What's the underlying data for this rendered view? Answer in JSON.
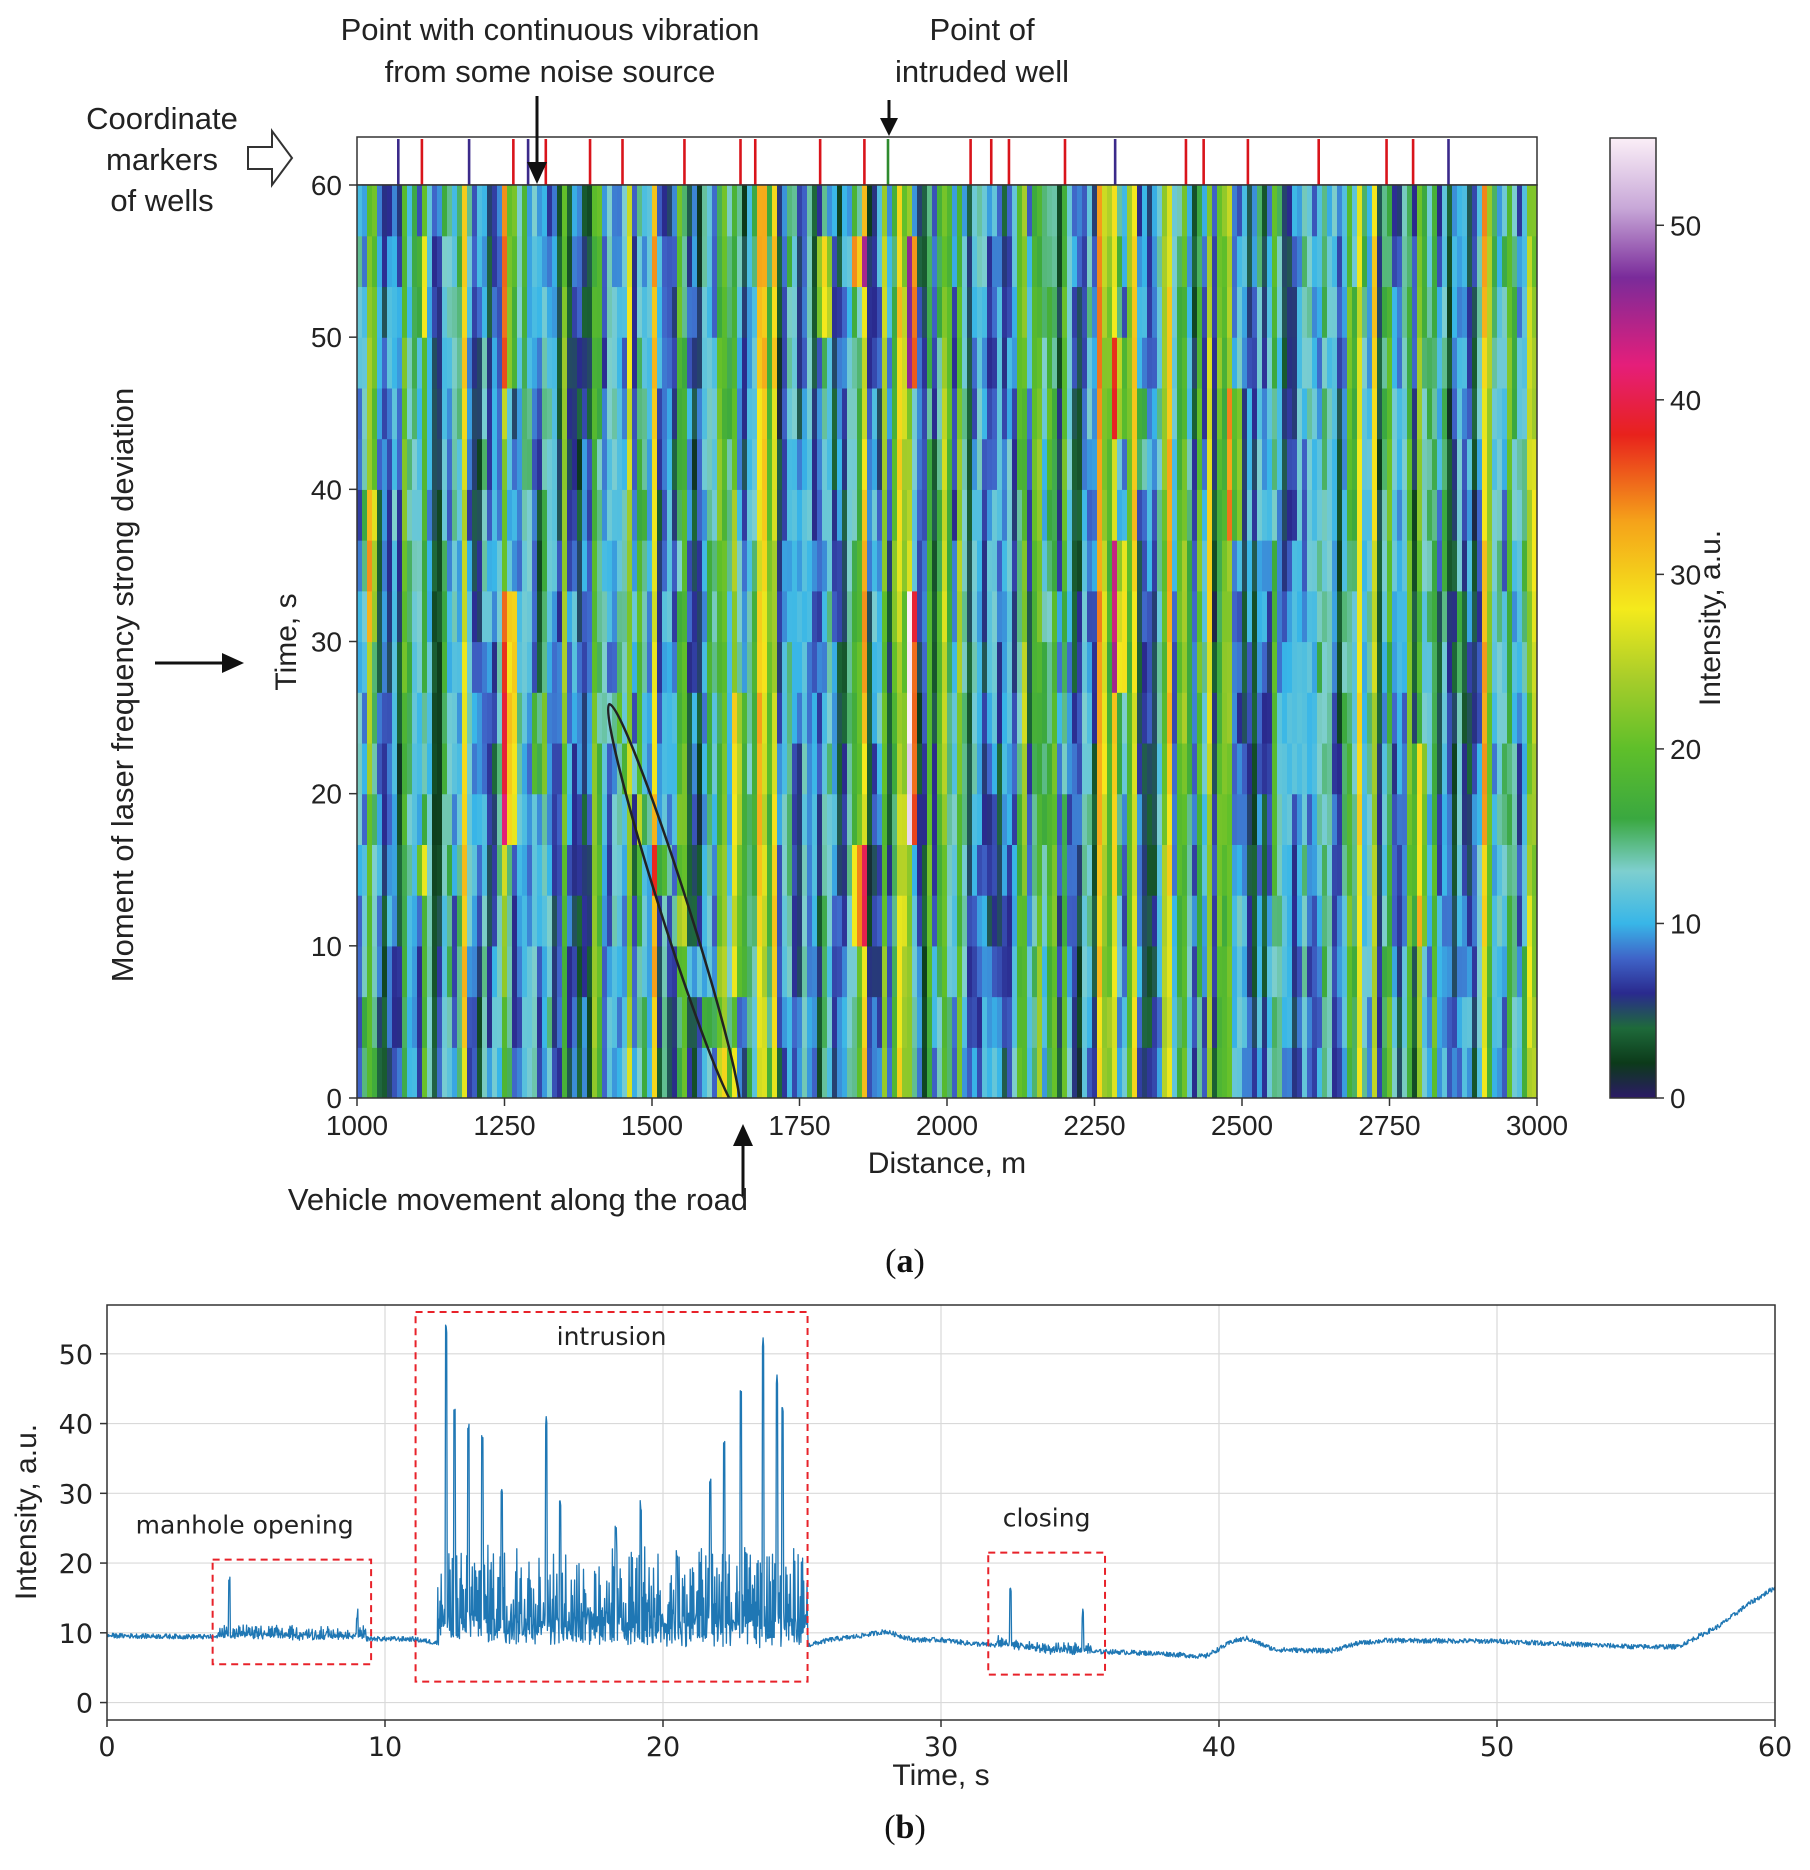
{
  "chart_data": [
    {
      "type": "heatmap",
      "panel": "a",
      "title": "",
      "xlabel": "Distance, m",
      "ylabel": "Time, s",
      "xlim": [
        1000,
        3000
      ],
      "ylim": [
        0,
        60
      ],
      "xticks": [
        "1000",
        "1250",
        "1500",
        "1750",
        "2000",
        "2250",
        "2500",
        "2750",
        "3000"
      ],
      "yticks": [
        "0",
        "10",
        "20",
        "30",
        "40",
        "50",
        "60"
      ],
      "colorbar": {
        "label": "Intensity, a.u.",
        "range": [
          0,
          55
        ],
        "ticks": [
          "0",
          "10",
          "20",
          "30",
          "40",
          "50"
        ],
        "stops": [
          {
            "v": 0,
            "c": "#2b1a66"
          },
          {
            "v": 2,
            "c": "#0c3a1a"
          },
          {
            "v": 4,
            "c": "#1e6a3a"
          },
          {
            "v": 6,
            "c": "#2a2a8e"
          },
          {
            "v": 8,
            "c": "#3f64c8"
          },
          {
            "v": 10,
            "c": "#38b6e8"
          },
          {
            "v": 13,
            "c": "#7ecfcf"
          },
          {
            "v": 16,
            "c": "#3aa840"
          },
          {
            "v": 20,
            "c": "#5fbf2a"
          },
          {
            "v": 24,
            "c": "#a7cd2a"
          },
          {
            "v": 28,
            "c": "#f4ea1c"
          },
          {
            "v": 33,
            "c": "#f5a31a"
          },
          {
            "v": 38,
            "c": "#e8221c"
          },
          {
            "v": 42,
            "c": "#e51e7a"
          },
          {
            "v": 47,
            "c": "#7a2b9a"
          },
          {
            "v": 51,
            "c": "#c8a8d8"
          },
          {
            "v": 55,
            "c": "#fbeff7"
          }
        ]
      },
      "well_markers": [
        {
          "x": 1070,
          "kind": "blue"
        },
        {
          "x": 1110,
          "kind": "red"
        },
        {
          "x": 1190,
          "kind": "blue"
        },
        {
          "x": 1265,
          "kind": "red"
        },
        {
          "x": 1290,
          "kind": "blue"
        },
        {
          "x": 1320,
          "kind": "red"
        },
        {
          "x": 1395,
          "kind": "red"
        },
        {
          "x": 1450,
          "kind": "red"
        },
        {
          "x": 1555,
          "kind": "red"
        },
        {
          "x": 1650,
          "kind": "red"
        },
        {
          "x": 1675,
          "kind": "red"
        },
        {
          "x": 1785,
          "kind": "red"
        },
        {
          "x": 1860,
          "kind": "red"
        },
        {
          "x": 1900,
          "kind": "green"
        },
        {
          "x": 2040,
          "kind": "red"
        },
        {
          "x": 2075,
          "kind": "red"
        },
        {
          "x": 2105,
          "kind": "red"
        },
        {
          "x": 2200,
          "kind": "red"
        },
        {
          "x": 2285,
          "kind": "blue"
        },
        {
          "x": 2405,
          "kind": "red"
        },
        {
          "x": 2435,
          "kind": "red"
        },
        {
          "x": 2510,
          "kind": "red"
        },
        {
          "x": 2630,
          "kind": "red"
        },
        {
          "x": 2745,
          "kind": "red"
        },
        {
          "x": 2790,
          "kind": "red"
        },
        {
          "x": 2850,
          "kind": "blue"
        }
      ],
      "vehicle_track": {
        "x0": 1640,
        "t0": 0,
        "x1": 1435,
        "t1": 25
      },
      "annotations": [
        {
          "id": "noise",
          "lines": [
            "Point with continuous vibration",
            "from some noise source"
          ],
          "x": 1310
        },
        {
          "id": "well",
          "lines": [
            "Point of",
            "intruded well"
          ],
          "x": 1900
        },
        {
          "id": "markers",
          "lines": [
            "Coordinate",
            "markers",
            "of wells"
          ]
        },
        {
          "id": "vehicle",
          "lines": [
            "Vehicle movement along the road"
          ],
          "x": 1660
        },
        {
          "id": "laser",
          "lines": [
            "Moment of laser frequency strong deviation"
          ],
          "t": 28
        }
      ]
    },
    {
      "type": "line",
      "panel": "b",
      "title": "",
      "xlabel": "Time, s",
      "ylabel": "Intensity, a.u.",
      "xlim": [
        0,
        60
      ],
      "ylim": [
        -2.5,
        57
      ],
      "xticks": [
        "0",
        "10",
        "20",
        "30",
        "40",
        "50",
        "60"
      ],
      "yticks": [
        "0",
        "10",
        "20",
        "30",
        "40",
        "50"
      ],
      "grid": true,
      "series": [
        {
          "name": "Intensity",
          "color": "#1f77b4",
          "baseline": [
            [
              0,
              9.6
            ],
            [
              4,
              9.4
            ],
            [
              8,
              9.2
            ],
            [
              11,
              9.1
            ],
            [
              12,
              8.5
            ],
            [
              25,
              8.0
            ],
            [
              26,
              9.0
            ],
            [
              27,
              9.5
            ],
            [
              28,
              10.2
            ],
            [
              29,
              9.0
            ],
            [
              30,
              9.0
            ],
            [
              31,
              8.5
            ],
            [
              32,
              8.2
            ],
            [
              34,
              7.2
            ],
            [
              36,
              7.3
            ],
            [
              38,
              7.0
            ],
            [
              39.5,
              6.6
            ],
            [
              40.5,
              8.8
            ],
            [
              41,
              9.2
            ],
            [
              42,
              7.6
            ],
            [
              44,
              7.4
            ],
            [
              45,
              8.5
            ],
            [
              46,
              8.9
            ],
            [
              50,
              8.8
            ],
            [
              55,
              8.0
            ],
            [
              56.5,
              8.0
            ],
            [
              58,
              11.0
            ],
            [
              59,
              14.0
            ],
            [
              60,
              16.5
            ]
          ],
          "regions": [
            {
              "from": 4,
              "to": 9.3,
              "amp": 1.6,
              "spikes": [
                [
                  4.4,
                  18.0
                ],
                [
                  9.0,
                  13.5
                ]
              ]
            },
            {
              "from": 11.9,
              "to": 25.2,
              "amp": 14,
              "spikes": [
                [
                  12.2,
                  54.5
                ],
                [
                  12.5,
                  43.0
                ],
                [
                  13.0,
                  40.0
                ],
                [
                  13.5,
                  38.5
                ],
                [
                  14.2,
                  31.0
                ],
                [
                  15.8,
                  41.0
                ],
                [
                  16.3,
                  29.0
                ],
                [
                  18.3,
                  26.0
                ],
                [
                  19.2,
                  29.0
                ],
                [
                  20.5,
                  22.0
                ],
                [
                  21.7,
                  33.0
                ],
                [
                  22.2,
                  38.0
                ],
                [
                  22.8,
                  45.0
                ],
                [
                  23.6,
                  52.5
                ],
                [
                  24.1,
                  47.0
                ],
                [
                  24.3,
                  43.0
                ]
              ]
            },
            {
              "from": 32,
              "to": 35.4,
              "amp": 1.2,
              "spikes": [
                [
                  32.5,
                  17.0
                ],
                [
                  35.1,
                  13.5
                ]
              ]
            }
          ]
        }
      ],
      "boxes": [
        {
          "label": "manhole opening",
          "from": 3.8,
          "to": 9.5,
          "low": 5.5,
          "high": 20.5
        },
        {
          "label": "intrusion",
          "from": 11.1,
          "to": 25.2,
          "low": 3.0,
          "high": 56.0
        },
        {
          "label": "closing",
          "from": 31.7,
          "to": 35.9,
          "low": 4.0,
          "high": 21.5
        }
      ]
    }
  ],
  "captions": {
    "a": "a",
    "b": "b"
  }
}
